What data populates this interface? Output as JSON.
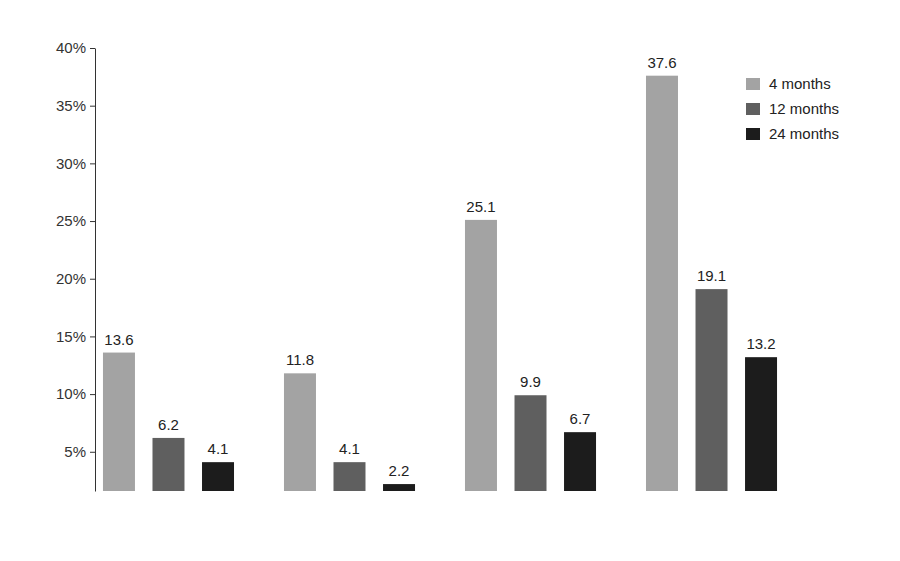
{
  "chart_data": {
    "type": "bar",
    "categories": [
      null,
      null,
      null,
      null
    ],
    "series": [
      {
        "name": "4 months",
        "color": "#a3a3a3",
        "values": [
          13.6,
          11.8,
          25.1,
          37.6
        ]
      },
      {
        "name": "12 months",
        "color": "#5f5f5f",
        "values": [
          6.2,
          4.1,
          9.9,
          19.1
        ]
      },
      {
        "name": "24 months",
        "color": "#1c1c1c",
        "values": [
          4.1,
          2.2,
          6.7,
          13.2
        ]
      }
    ],
    "ylim": [
      1.6,
      40
    ],
    "yticks": [
      {
        "value": 5,
        "label": "5%"
      },
      {
        "value": 10,
        "label": "10%"
      },
      {
        "value": 15,
        "label": "15%"
      },
      {
        "value": 20,
        "label": "20%"
      },
      {
        "value": 25,
        "label": "25%"
      },
      {
        "value": 30,
        "label": "30%"
      },
      {
        "value": 35,
        "label": "35%"
      },
      {
        "value": 40,
        "label": "40%"
      }
    ],
    "grid": false,
    "data_labels": true,
    "legend": "upper right",
    "tick_labels": "y"
  }
}
